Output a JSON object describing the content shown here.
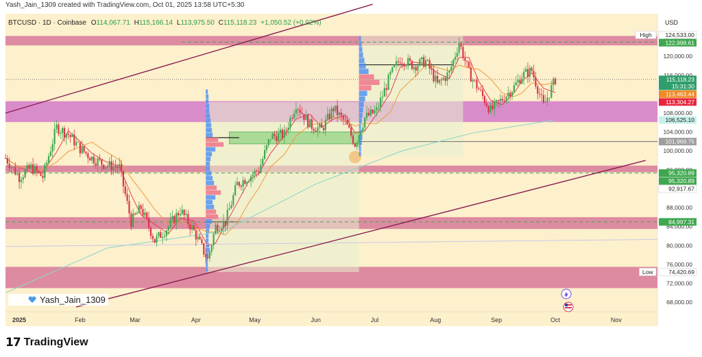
{
  "header": {
    "credit": "Yash_Jain_1309 created with TradingView.com, Oct 01, 2025 13:58 UTC+5:30"
  },
  "legend": {
    "symbol": "BTCUSD · 1D · Coinbase",
    "o_label": "O",
    "o": "114,067.71",
    "h_label": "H",
    "h": "115,166.14",
    "l_label": "L",
    "l": "113,975.50",
    "c_label": "C",
    "c": "115,118.23",
    "change": "+1,050.52 (+0.92%)"
  },
  "currency": "USD",
  "watermark": "Yash_Jain_1309",
  "branding": "TradingView",
  "colors": {
    "background": "#fdf0cc",
    "zone_pink": "#cf5f8e",
    "zone_magenta": "#cc6bc9",
    "trend_line": "#8a1e52",
    "ema_fast": "#e2424c",
    "ema_slow": "#ef9a3c",
    "ma_long": "#8fd6c9",
    "candle_up": "#3fa84f",
    "candle_down": "#d9334b",
    "volume_profile": "#4a8df6"
  },
  "chart_data": {
    "type": "candlestick",
    "symbol": "BTCUSD",
    "interval": "1D",
    "exchange": "Coinbase",
    "y_unit": "USD",
    "ylim": [
      66000,
      129000
    ],
    "xlim": [
      "2024-12-25",
      "2025-11-22"
    ],
    "x_ticks": [
      {
        "date": "2025-01-01",
        "label": "2025"
      },
      {
        "date": "2025-02-01",
        "label": "Feb"
      },
      {
        "date": "2025-03-01",
        "label": "Mar"
      },
      {
        "date": "2025-04-01",
        "label": "Apr"
      },
      {
        "date": "2025-05-01",
        "label": "May"
      },
      {
        "date": "2025-06-01",
        "label": "Jun"
      },
      {
        "date": "2025-07-01",
        "label": "Jul"
      },
      {
        "date": "2025-08-01",
        "label": "Aug"
      },
      {
        "date": "2025-09-01",
        "label": "Sep"
      },
      {
        "date": "2025-10-01",
        "label": "Oct"
      },
      {
        "date": "2025-11-01",
        "label": "Nov"
      }
    ],
    "y_ticks": [
      "124,000.00",
      "120,000.00",
      "116,000.00",
      "112,000.00",
      "108,000.00",
      "104,000.00",
      "100,000.00",
      "96,000.00",
      "92,000.00",
      "88,000.00",
      "84,000.00",
      "80,000.00",
      "76,000.00",
      "72,000.00",
      "68,000.00"
    ],
    "price_labels": [
      {
        "label": "High",
        "value": "124,533.00",
        "style": "plain"
      },
      {
        "value": "122,998.61",
        "style": "green"
      },
      {
        "value": "115,118.23",
        "style": "teal",
        "sub": "15:31:30"
      },
      {
        "value": "113,463.44",
        "style": "orange"
      },
      {
        "value": "113,304.27",
        "style": "red"
      },
      {
        "value": "106,525.10",
        "style": "cyan"
      },
      {
        "value": "101,969.75",
        "style": "gray"
      },
      {
        "value": "95,320.89",
        "style": "green"
      },
      {
        "value": "95,320.89",
        "style": "green"
      },
      {
        "value": "92,917.67",
        "style": "plain"
      },
      {
        "value": "84,997.31",
        "style": "green"
      },
      {
        "label": "Low",
        "value": "74,420.69",
        "style": "plain"
      }
    ],
    "zones": [
      {
        "from": 122300,
        "to": 124300,
        "color": "pink"
      },
      {
        "from": 106100,
        "to": 110500,
        "color": "magenta"
      },
      {
        "from": 95500,
        "to": 96900,
        "color": "pink"
      },
      {
        "from": 83500,
        "to": 86000,
        "color": "pink"
      },
      {
        "from": 71000,
        "to": 75500,
        "color": "pink"
      }
    ],
    "trend_lines": [
      {
        "from": {
          "date": "2024-12-25",
          "price": 108000
        },
        "to": {
          "date": "2025-06-30",
          "price": 131000
        }
      },
      {
        "from": {
          "date": "2025-01-30",
          "price": 67000
        },
        "to": {
          "date": "2025-11-16",
          "price": 98000
        }
      }
    ],
    "reference_lines": [
      101969.75,
      115118.23
    ],
    "close_series": [
      {
        "date": "2024-12-25",
        "close": 98500
      },
      {
        "date": "2025-01-01",
        "close": 94500
      },
      {
        "date": "2025-01-07",
        "close": 96500
      },
      {
        "date": "2025-01-13",
        "close": 94500
      },
      {
        "date": "2025-01-20",
        "close": 105000
      },
      {
        "date": "2025-01-26",
        "close": 103500
      },
      {
        "date": "2025-02-01",
        "close": 100500
      },
      {
        "date": "2025-02-07",
        "close": 98500
      },
      {
        "date": "2025-02-14",
        "close": 97000
      },
      {
        "date": "2025-02-21",
        "close": 96500
      },
      {
        "date": "2025-02-27",
        "close": 85000
      },
      {
        "date": "2025-03-04",
        "close": 88000
      },
      {
        "date": "2025-03-11",
        "close": 81000
      },
      {
        "date": "2025-03-18",
        "close": 84000
      },
      {
        "date": "2025-03-24",
        "close": 87500
      },
      {
        "date": "2025-03-31",
        "close": 83000
      },
      {
        "date": "2025-04-07",
        "close": 77000
      },
      {
        "date": "2025-04-11",
        "close": 84000
      },
      {
        "date": "2025-04-16",
        "close": 85000
      },
      {
        "date": "2025-04-22",
        "close": 93000
      },
      {
        "date": "2025-04-28",
        "close": 94500
      },
      {
        "date": "2025-05-03",
        "close": 96000
      },
      {
        "date": "2025-05-09",
        "close": 103000
      },
      {
        "date": "2025-05-16",
        "close": 103500
      },
      {
        "date": "2025-05-22",
        "close": 110000
      },
      {
        "date": "2025-05-29",
        "close": 105500
      },
      {
        "date": "2025-06-04",
        "close": 104500
      },
      {
        "date": "2025-06-10",
        "close": 109000
      },
      {
        "date": "2025-06-16",
        "close": 106000
      },
      {
        "date": "2025-06-21",
        "close": 101500
      },
      {
        "date": "2025-06-26",
        "close": 107000
      },
      {
        "date": "2025-07-02",
        "close": 108500
      },
      {
        "date": "2025-07-09",
        "close": 116000
      },
      {
        "date": "2025-07-14",
        "close": 119500
      },
      {
        "date": "2025-07-21",
        "close": 118000
      },
      {
        "date": "2025-07-27",
        "close": 119000
      },
      {
        "date": "2025-08-02",
        "close": 114000
      },
      {
        "date": "2025-08-08",
        "close": 116500
      },
      {
        "date": "2025-08-13",
        "close": 123000
      },
      {
        "date": "2025-08-18",
        "close": 116500
      },
      {
        "date": "2025-08-23",
        "close": 113000
      },
      {
        "date": "2025-08-29",
        "close": 108500
      },
      {
        "date": "2025-09-04",
        "close": 111000
      },
      {
        "date": "2025-09-10",
        "close": 113500
      },
      {
        "date": "2025-09-14",
        "close": 116000
      },
      {
        "date": "2025-09-19",
        "close": 117000
      },
      {
        "date": "2025-09-25",
        "close": 109500
      },
      {
        "date": "2025-10-01",
        "close": 115118
      }
    ]
  }
}
